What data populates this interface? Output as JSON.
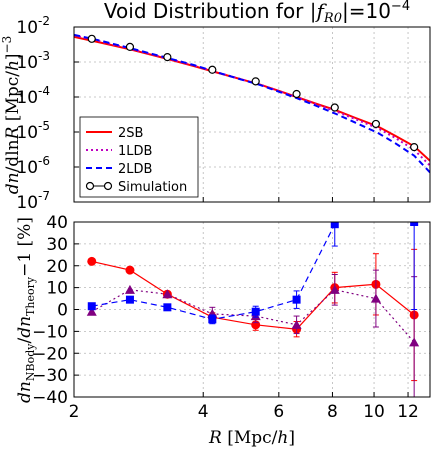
{
  "chart_data": [
    {
      "type": "line",
      "title": "Void Distribution for |f_R0| = 10^-4",
      "title_parts": {
        "main": "Void Distribution for ",
        "math": "|f",
        "sub": "R0",
        "eq": "|=10",
        "sup": "−4"
      },
      "ylabel": "dn/dlnR [Mpc/h]^-3",
      "xscale": "log",
      "yscale": "log",
      "xlim": [
        2,
        13.5
      ],
      "ylim": [
        1e-07,
        0.01
      ],
      "ytick_labels": [
        {
          "base": "10",
          "exp": "-7"
        },
        {
          "base": "10",
          "exp": "-6"
        },
        {
          "base": "10",
          "exp": "-5"
        },
        {
          "base": "10",
          "exp": "-4"
        },
        {
          "base": "10",
          "exp": "-3"
        },
        {
          "base": "10",
          "exp": "-2"
        }
      ],
      "grid": true,
      "legend_position": "lower-left",
      "series": [
        {
          "name": "2SB",
          "style": "solid",
          "color": "#ff0000",
          "x": [
            2,
            2.3,
            2.7,
            3.2,
            3.8,
            4.3,
            5.0,
            5.4,
            6.0,
            6.6,
            7.3,
            8.1,
            9.0,
            10.2,
            11.2,
            12.4,
            13.5
          ],
          "y": [
            0.0052,
            0.0036,
            0.0023,
            0.00135,
            0.00077,
            0.0005,
            0.0003,
            0.00023,
            0.00015,
            0.0001,
            6.5e-05,
            4.3e-05,
            2.6e-05,
            1.45e-05,
            7.8e-06,
            3.9e-06,
            1.5e-06
          ]
        },
        {
          "name": "1LDB",
          "style": "dotted",
          "color": "#bf00bf",
          "x": [
            2,
            2.3,
            2.7,
            3.2,
            3.8,
            4.3,
            5.0,
            5.4,
            6.0,
            6.6,
            7.3,
            8.1,
            9.0,
            10.2,
            11.2,
            12.4,
            13.5
          ],
          "y": [
            0.0058,
            0.0039,
            0.0024,
            0.0014,
            0.0008,
            0.00051,
            0.0003,
            0.00023,
            0.000148,
            9.8e-05,
            6.3e-05,
            4e-05,
            2.4e-05,
            1.28e-05,
            6.8e-06,
            3.1e-06,
            1.1e-06
          ]
        },
        {
          "name": "2LDB",
          "style": "dashed",
          "color": "#0000ff",
          "x": [
            2,
            2.3,
            2.7,
            3.2,
            3.8,
            4.3,
            5.0,
            5.4,
            6.0,
            6.6,
            7.3,
            8.1,
            9.0,
            10.2,
            11.2,
            12.4,
            13.5
          ],
          "y": [
            0.006,
            0.0041,
            0.0025,
            0.00145,
            0.00082,
            0.00051,
            0.000295,
            0.000225,
            0.000142,
            9.3e-05,
            5.7e-05,
            3.4e-05,
            1.9e-05,
            9.5e-06,
            4.8e-06,
            2.1e-06,
            7e-07
          ]
        },
        {
          "name": "Simulation",
          "style": "markers",
          "color": "#000000",
          "x": [
            2.2,
            2.7,
            3.3,
            4.2,
            5.3,
            6.6,
            8.1,
            10.1,
            12.4
          ],
          "y": [
            0.0046,
            0.0027,
            0.00138,
            0.0006,
            0.00028,
            0.000122,
            5e-05,
            1.7e-05,
            3.7e-06
          ]
        }
      ]
    },
    {
      "type": "line",
      "xlabel": "R [Mpc/h]",
      "ylabel": "dn_NBody/dn_Theory − 1 [%]",
      "xscale": "log",
      "xlim": [
        2,
        13.5
      ],
      "ylim": [
        -40,
        40
      ],
      "xticks": [
        2,
        4,
        6,
        8,
        10,
        12
      ],
      "xtick_labels": [
        "2",
        "4",
        "6",
        "8",
        "10",
        "12"
      ],
      "yticks": [
        -40,
        -30,
        -20,
        -10,
        0,
        10,
        20,
        30,
        40
      ],
      "ytick_labels": [
        "−40",
        "−30",
        "−20",
        "−10",
        "0",
        "10",
        "20",
        "30",
        "40"
      ],
      "grid": true,
      "series": [
        {
          "name": "2SB",
          "style": "solid",
          "marker": "circle",
          "color": "#ff0000",
          "x": [
            2.2,
            2.7,
            3.3,
            4.2,
            5.3,
            6.6,
            8.1,
            10.1,
            12.4
          ],
          "y": [
            22,
            18,
            7,
            -3.5,
            -7,
            -9,
            10,
            11.5,
            -2.5
          ],
          "err": [
            0,
            0,
            0,
            2,
            2.5,
            3.5,
            7,
            14,
            30
          ]
        },
        {
          "name": "1LDB",
          "style": "dotted",
          "marker": "triangle",
          "color": "#800080",
          "x": [
            2.2,
            2.7,
            3.3,
            4.2,
            5.3,
            6.6,
            8.1,
            10.1,
            12.4
          ],
          "y": [
            -1,
            9,
            7,
            -2,
            -3,
            -7,
            9,
            5,
            -15
          ],
          "err": [
            0,
            0,
            0,
            3,
            3,
            4,
            7,
            13,
            30
          ]
        },
        {
          "name": "2LDB",
          "style": "dashed",
          "marker": "square",
          "color": "#0000ff",
          "x": [
            2.2,
            2.7,
            3.3,
            4.2,
            5.3,
            6.6,
            8.1,
            10.1,
            12.4
          ],
          "y": [
            1.5,
            4.5,
            1,
            -4.5,
            -1,
            4.5,
            39,
            99,
            40
          ],
          "err": [
            0,
            0,
            0,
            2,
            2.5,
            4,
            10,
            0,
            40
          ]
        }
      ]
    }
  ]
}
